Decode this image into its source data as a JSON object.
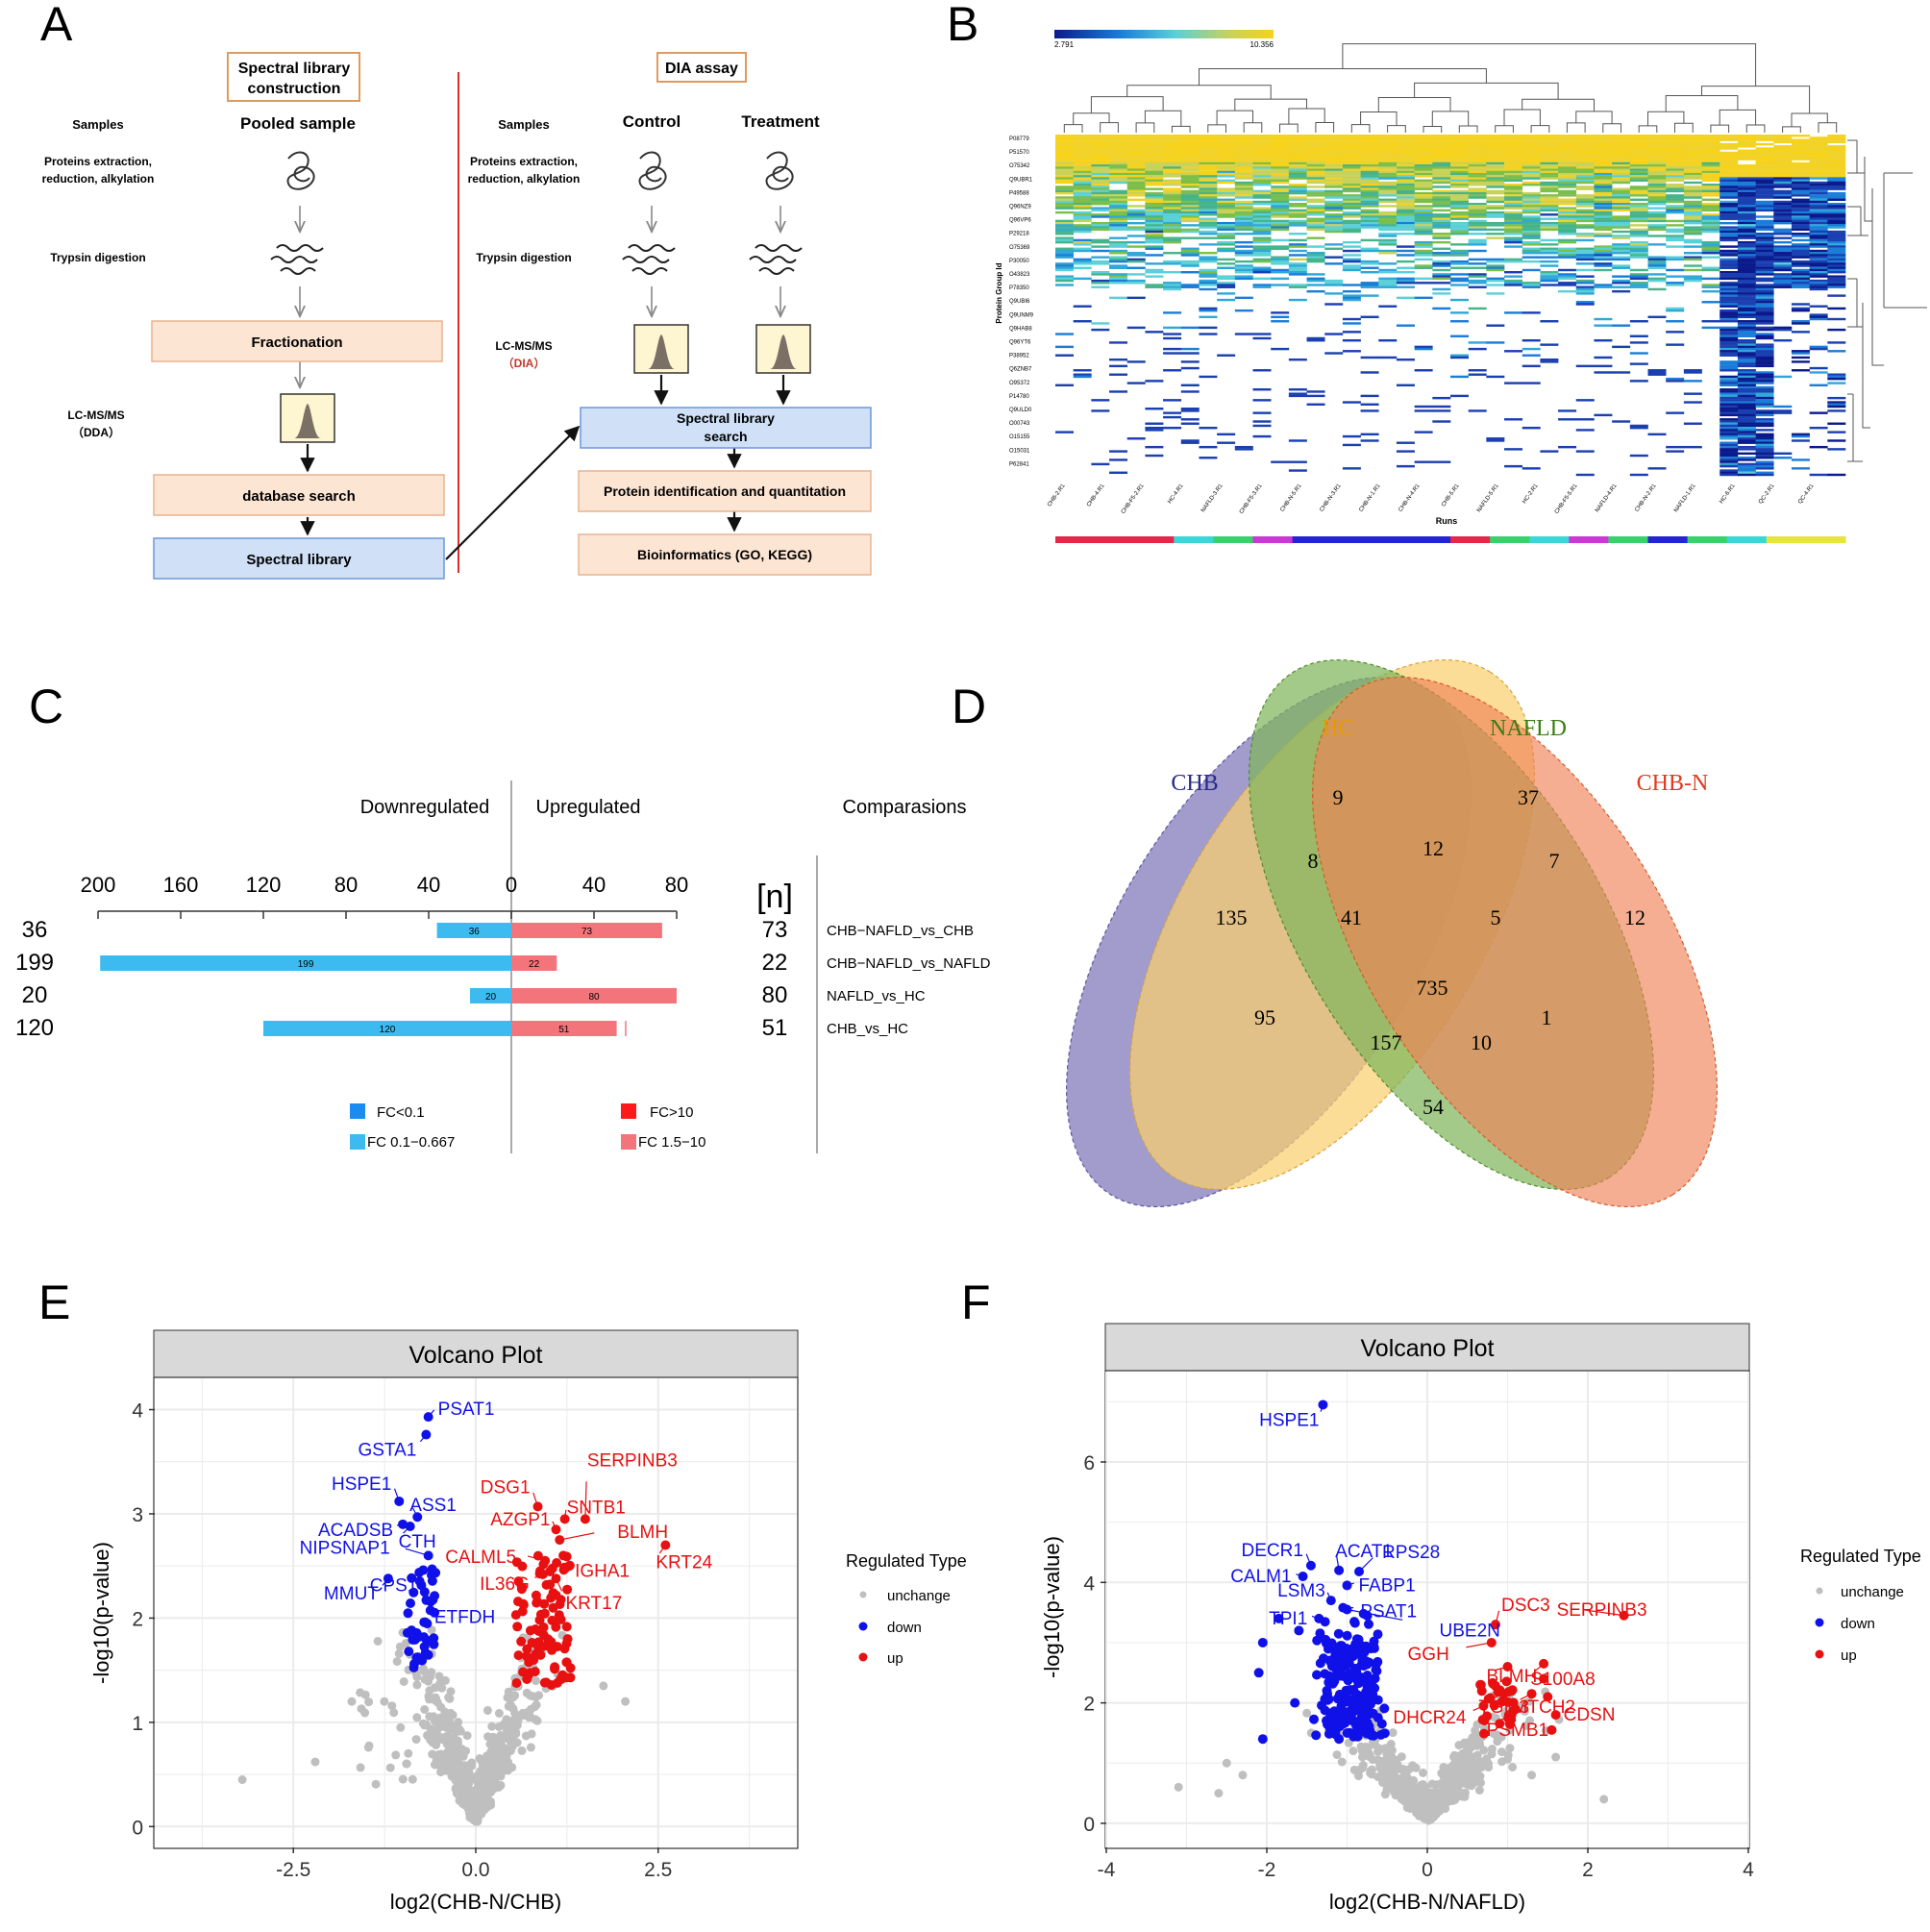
{
  "panel_letters": [
    "A",
    "B",
    "C",
    "D",
    "E",
    "F"
  ],
  "panel_a": {
    "left_title": [
      "Spectral library",
      "construction"
    ],
    "right_title": "DIA assay",
    "samples_label": "Samples",
    "pooled_sample": "Pooled sample",
    "control": "Control",
    "treatment": "Treatment",
    "proteins_label": [
      "Proteins extraction,",
      "reduction, alkylation"
    ],
    "trypsin_label": "Trypsin digestion",
    "fractionation": "Fractionation",
    "lcms_dda": [
      "LC-MS/MS",
      "（DDA）"
    ],
    "lcms_dia": [
      "LC-MS/MS",
      "（DIA）"
    ],
    "database_search": "database search",
    "spectral_library": "Spectral library",
    "spectral_search": [
      "Spectral library",
      "search"
    ],
    "protein_id": "Protein identification and quantitation",
    "bioinformatics": "Bioinformatics (GO, KEGG)",
    "colors": {
      "peach": "#fde5d3",
      "peach_border": "#e8b48f",
      "blue_box": "#cfe0f7",
      "blue_border": "#6f97d6",
      "divider": "#d9302c",
      "dia_red": "#c0392b"
    }
  },
  "panel_b": {
    "scale_min": "2.791",
    "scale_max": "10.356",
    "ylabel": "Protein Group Id",
    "xlabel": "Runs",
    "row_ids": [
      "P08779",
      "P51570",
      "O75342",
      "Q9UBR1",
      "P49588",
      "Q96NZ9",
      "Q96VP6",
      "P29218",
      "O75369",
      "P30050",
      "O43823",
      "P78350",
      "Q9UBI6",
      "Q9UNM9",
      "Q9HAB8",
      "Q96YT6",
      "P38952",
      "Q6ZNB7",
      "O95372",
      "P14780",
      "Q9ULD0",
      "O00743",
      "O15155",
      "O15031",
      "P62841"
    ],
    "col_labels": [
      "CHB-2.R1",
      "CHB-4.R1",
      "CHB-F5-2.R1",
      "HC-4.R1",
      "NAFLD-3.R1",
      "CHB-F5-3.R1",
      "CHB-N-5.R1",
      "CHB-N-3.R1",
      "CHB-N-1.R1",
      "CHB-N-4.R1",
      "CHB-5.R1",
      "NAFLD-5.R1",
      "HC-2.R1",
      "CHB-F5-5.R1",
      "NAFLD-4.R1",
      "CHB-N-2.R1",
      "NAFLD-1.R1",
      "HC-6.R1",
      "QC-2.R1",
      "QC-4.R1"
    ],
    "group_bar_colors": [
      "#e8264a",
      "#e8264a",
      "#e8264a",
      "#39d7d7",
      "#39d26a",
      "#cc38d6",
      "#2323d8",
      "#2323d8",
      "#2323d8",
      "#2323d8",
      "#e8264a",
      "#39d26a",
      "#39d7d7",
      "#cc38d6",
      "#39d26a",
      "#2323d8",
      "#39d26a",
      "#39d7d7",
      "#e6e63a",
      "#e6e63a"
    ]
  },
  "panel_c": {
    "header_down": "Downregulated",
    "header_up": "Upregulated",
    "header_comp": "Comparasions",
    "n_label": "[n]",
    "legend": [
      "FC<0.1",
      "FC 0.1−0.667",
      "FC>10",
      "FC 1.5−10"
    ],
    "colors": {
      "down_dark": "#1a8cf0",
      "down": "#3dbbf0",
      "up_dark": "#ff1a1a",
      "up": "#f4747b"
    }
  },
  "panel_d": {
    "labels": {
      "chb": "CHB",
      "hc": "HC",
      "nafld": "NAFLD",
      "chbn": "CHB-N"
    },
    "counts": {
      "chb_only": "135",
      "hc_only": "9",
      "nafld_only": "37",
      "chbn_only": "12",
      "chb_hc": "8",
      "hc_nafld": "12",
      "nafld_chbn": "7",
      "chb_hc_nafld": "41",
      "hc_nafld_chbn": "5",
      "all": "735",
      "chb_nafld": "95",
      "hc_chbn": "1",
      "chb_nafld_chbn": "157",
      "chb_hc_chbn": "10",
      "chb_chbn": "54"
    },
    "colors": {
      "chb": "#8a83bf",
      "hc": "#fbd06f",
      "nafld": "#7fb55c",
      "chbn": "#ef8358",
      "chb_text": "#2a2a8a",
      "hc_text": "#e79a00",
      "nafld_text": "#3b7d14",
      "chbn_text": "#e03a1f"
    }
  },
  "panel_e": {
    "title": "Volcano Plot",
    "xlabel": "log2(CHB-N/CHB)",
    "ylabel": "-log10(p-value)"
  },
  "panel_f": {
    "title": "Volcano Plot",
    "xlabel": "log2(CHB-N/NAFLD)",
    "ylabel": "-log10(p-value)"
  },
  "legend": {
    "title": "Regulated Type",
    "items": [
      "unchange",
      "down",
      "up"
    ],
    "colors": [
      "#bfbfbf",
      "#1010e8",
      "#e81010"
    ]
  },
  "chart_data": [
    {
      "id": "C",
      "type": "bar",
      "orientation": "horizontal-diverging",
      "categories": [
        "CHB−NAFLD_vs_CHB",
        "CHB−NAFLD_vs_NAFLD",
        "NAFLD_vs_HC",
        "CHB_vs_HC"
      ],
      "series": [
        {
          "name": "Downregulated",
          "values": [
            36,
            199,
            20,
            120
          ]
        },
        {
          "name": "Upregulated",
          "values": [
            73,
            22,
            80,
            51
          ]
        }
      ],
      "down_labels": [
        "36",
        "199",
        "20",
        "120"
      ],
      "up_labels": [
        "73",
        "22",
        "80",
        "51"
      ],
      "axis_ticks": [
        "200",
        "160",
        "120",
        "80",
        "40",
        "0",
        "40",
        "80"
      ],
      "xlim": [
        -200,
        80
      ]
    },
    {
      "id": "E",
      "type": "scatter",
      "title": "Volcano Plot",
      "xlabel": "log2(CHB-N/CHB)",
      "ylabel": "-log10(p-value)",
      "xlim": [
        -4.4,
        4.4
      ],
      "ylim": [
        -0.2,
        4.3
      ],
      "xticks": [
        -2.5,
        0,
        2.5
      ],
      "xtick_labels": [
        "-2.5",
        "0.0",
        "2.5"
      ],
      "yticks": [
        0,
        1,
        2,
        3,
        4
      ],
      "ytick_labels": [
        "0",
        "1",
        "2",
        "3",
        "4"
      ],
      "labels": [
        {
          "text": "PSAT1",
          "type": "down",
          "x": -0.65,
          "y": 3.93
        },
        {
          "text": "GSTA1",
          "type": "down",
          "x": -0.68,
          "y": 3.76
        },
        {
          "text": "HSPE1",
          "type": "down",
          "x": -1.05,
          "y": 3.12
        },
        {
          "text": "ASS1",
          "type": "down",
          "x": -0.8,
          "y": 2.97
        },
        {
          "text": "ACADSB",
          "type": "down",
          "x": -1.0,
          "y": 2.9
        },
        {
          "text": "CTH",
          "type": "down",
          "x": -0.9,
          "y": 2.88
        },
        {
          "text": "NIPSNAP1",
          "type": "down",
          "x": -0.65,
          "y": 2.6
        },
        {
          "text": "CPS1",
          "type": "down",
          "x": -0.72,
          "y": 2.46
        },
        {
          "text": "ETFDH",
          "type": "down",
          "x": -0.7,
          "y": 2.25
        },
        {
          "text": "MMUT",
          "type": "down",
          "x": -1.2,
          "y": 2.38
        },
        {
          "text": "SERPINB3",
          "type": "up",
          "x": 1.5,
          "y": 2.95
        },
        {
          "text": "DSG1",
          "type": "up",
          "x": 0.85,
          "y": 3.07
        },
        {
          "text": "SNTB1",
          "type": "up",
          "x": 1.22,
          "y": 2.95
        },
        {
          "text": "AZGP1",
          "type": "up",
          "x": 1.1,
          "y": 2.85
        },
        {
          "text": "BLMH",
          "type": "up",
          "x": 1.15,
          "y": 2.75
        },
        {
          "text": "CALML5",
          "type": "up",
          "x": 0.95,
          "y": 2.55
        },
        {
          "text": "IGHA1",
          "type": "up",
          "x": 1.2,
          "y": 2.6
        },
        {
          "text": "KRT24",
          "type": "up",
          "x": 2.6,
          "y": 2.7
        },
        {
          "text": "IL36G",
          "type": "up",
          "x": 0.92,
          "y": 2.42
        },
        {
          "text": "KRT17",
          "type": "up",
          "x": 1.1,
          "y": 2.38
        }
      ]
    },
    {
      "id": "F",
      "type": "scatter",
      "title": "Volcano Plot",
      "xlabel": "log2(CHB-N/NAFLD)",
      "ylabel": "-log10(p-value)",
      "xlim": [
        -4,
        4
      ],
      "ylim": [
        -0.4,
        7.5
      ],
      "xticks": [
        -4,
        -2,
        0,
        2,
        4
      ],
      "xtick_labels": [
        "-4",
        "-2",
        "0",
        "2",
        "4"
      ],
      "yticks": [
        0,
        2,
        4,
        6
      ],
      "ytick_labels": [
        "0",
        "2",
        "4",
        "6"
      ],
      "labels": [
        {
          "text": "HSPE1",
          "type": "down",
          "x": -1.3,
          "y": 6.95
        },
        {
          "text": "DECR1",
          "type": "down",
          "x": -1.45,
          "y": 4.28
        },
        {
          "text": "ACAT1",
          "type": "down",
          "x": -1.1,
          "y": 4.2
        },
        {
          "text": "RPS28",
          "type": "down",
          "x": -0.85,
          "y": 4.18
        },
        {
          "text": "CALM1",
          "type": "down",
          "x": -1.55,
          "y": 4.1
        },
        {
          "text": "FABP1",
          "type": "down",
          "x": -1.0,
          "y": 3.95
        },
        {
          "text": "LSM3",
          "type": "down",
          "x": -1.2,
          "y": 3.7
        },
        {
          "text": "PSAT1",
          "type": "down",
          "x": -1.05,
          "y": 3.58
        },
        {
          "text": "TPI1",
          "type": "down",
          "x": -1.35,
          "y": 3.4
        },
        {
          "text": "UBE2N",
          "type": "down",
          "x": -1.0,
          "y": 3.55
        },
        {
          "text": "DSC3",
          "type": "up",
          "x": 0.85,
          "y": 3.3
        },
        {
          "text": "SERPINB3",
          "type": "up",
          "x": 2.45,
          "y": 3.45
        },
        {
          "text": "GGH",
          "type": "up",
          "x": 0.8,
          "y": 3.0
        },
        {
          "text": "S100A8",
          "type": "up",
          "x": 1.45,
          "y": 2.65
        },
        {
          "text": "BLMH",
          "type": "up",
          "x": 1.0,
          "y": 2.6
        },
        {
          "text": "TGM3",
          "type": "up",
          "x": 0.95,
          "y": 2.15
        },
        {
          "text": "MTCH2",
          "type": "up",
          "x": 1.3,
          "y": 2.15
        },
        {
          "text": "DHCR24",
          "type": "up",
          "x": 0.7,
          "y": 1.95
        },
        {
          "text": "PSMB1",
          "type": "up",
          "x": 1.05,
          "y": 1.8
        },
        {
          "text": "CDSN",
          "type": "up",
          "x": 1.6,
          "y": 1.8
        }
      ]
    }
  ]
}
